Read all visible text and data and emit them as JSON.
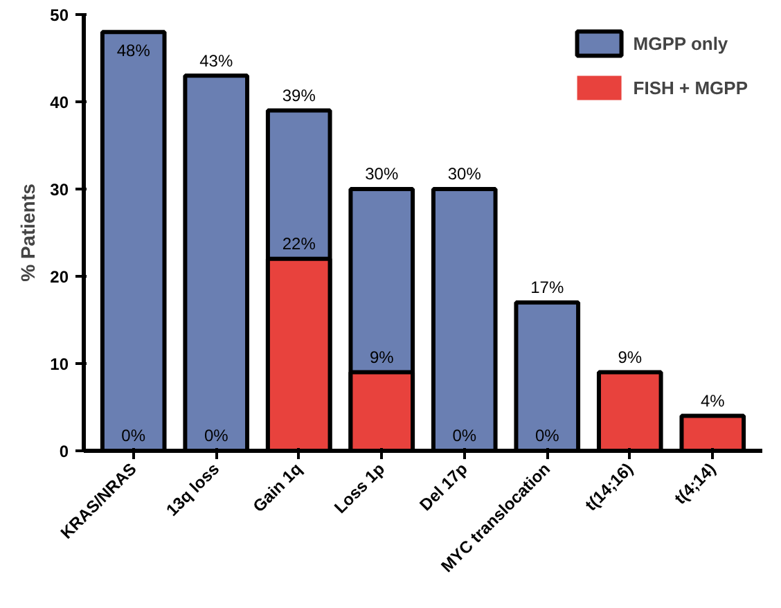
{
  "chart_data": {
    "type": "bar",
    "ylabel": "% Patients",
    "categories": [
      "KRAS/NRAS",
      "13q loss",
      "Gain 1q",
      "Loss 1p",
      "Del 17p",
      "MYC translocation",
      "t(14;16)",
      "t(4;14)"
    ],
    "series": [
      {
        "name": "MGPP only",
        "color": "#6a7fb2",
        "values": [
          48,
          43,
          39,
          30,
          30,
          17,
          null,
          null
        ],
        "value_labels": [
          "48%",
          "43%",
          "39%",
          "30%",
          "30%",
          "17%",
          null,
          null
        ]
      },
      {
        "name": "FISH + MGPP",
        "color": "#e8423d",
        "values": [
          0,
          0,
          22,
          9,
          0,
          0,
          9,
          4
        ],
        "value_labels": [
          "0%",
          "0%",
          "22%",
          "9%",
          "0%",
          "0%",
          "9%",
          "4%"
        ]
      }
    ],
    "ylim": [
      0,
      50
    ],
    "yticks": [
      0,
      10,
      20,
      30,
      40,
      50
    ],
    "grid": false,
    "legend": "top right"
  }
}
